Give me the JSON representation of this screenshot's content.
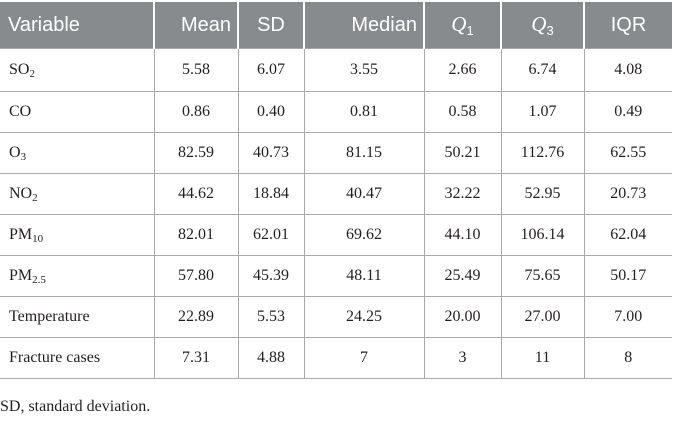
{
  "table": {
    "headers": [
      {
        "main": "Variable",
        "sub": ""
      },
      {
        "main": "Mean",
        "sub": ""
      },
      {
        "main": "SD",
        "sub": ""
      },
      {
        "main": "Median",
        "sub": ""
      },
      {
        "main": "Q",
        "sub": "1"
      },
      {
        "main": "Q",
        "sub": "3"
      },
      {
        "main": "IQR",
        "sub": ""
      }
    ],
    "rows": [
      {
        "var_main": "SO",
        "var_sub": "2",
        "mean": "5.58",
        "sd": "6.07",
        "median": "3.55",
        "q1": "2.66",
        "q3": "6.74",
        "iqr": "4.08"
      },
      {
        "var_main": "CO",
        "var_sub": "",
        "mean": "0.86",
        "sd": "0.40",
        "median": "0.81",
        "q1": "0.58",
        "q3": "1.07",
        "iqr": "0.49"
      },
      {
        "var_main": "O",
        "var_sub": "3",
        "mean": "82.59",
        "sd": "40.73",
        "median": "81.15",
        "q1": "50.21",
        "q3": "112.76",
        "iqr": "62.55"
      },
      {
        "var_main": "NO",
        "var_sub": "2",
        "mean": "44.62",
        "sd": "18.84",
        "median": "40.47",
        "q1": "32.22",
        "q3": "52.95",
        "iqr": "20.73"
      },
      {
        "var_main": "PM",
        "var_sub": "10",
        "mean": "82.01",
        "sd": "62.01",
        "median": "69.62",
        "q1": "44.10",
        "q3": "106.14",
        "iqr": "62.04"
      },
      {
        "var_main": "PM",
        "var_sub": "2.5",
        "mean": "57.80",
        "sd": "45.39",
        "median": "48.11",
        "q1": "25.49",
        "q3": "75.65",
        "iqr": "50.17"
      },
      {
        "var_main": "Temperature",
        "var_sub": "",
        "mean": "22.89",
        "sd": "5.53",
        "median": "24.25",
        "q1": "20.00",
        "q3": "27.00",
        "iqr": "7.00"
      },
      {
        "var_main": "Fracture cases",
        "var_sub": "",
        "mean": "7.31",
        "sd": "4.88",
        "median": "7",
        "q1": "3",
        "q3": "11",
        "iqr": "8"
      }
    ]
  },
  "footnote": "SD, standard deviation.",
  "colors": {
    "header_bg": "#888b8d",
    "header_text": "#ffffff",
    "border": "#a7a9ac",
    "body_text": "#231f20"
  }
}
